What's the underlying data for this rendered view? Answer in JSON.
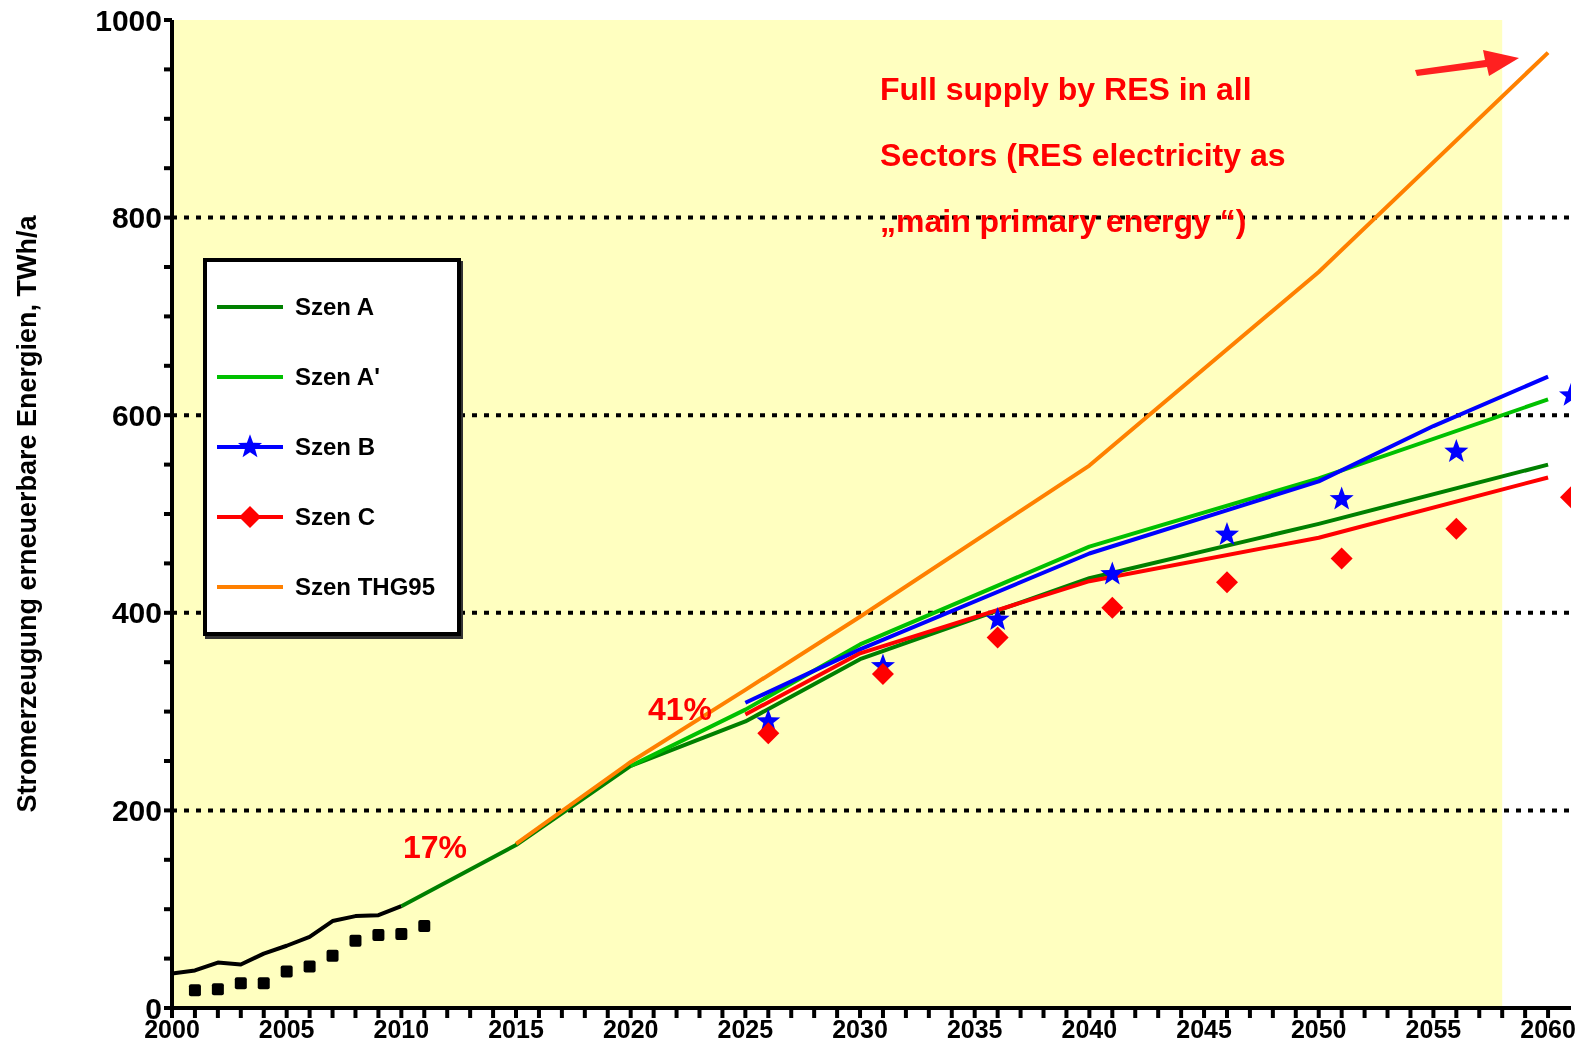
{
  "chart_data": {
    "type": "line",
    "ylabel": "Stromerzeugung erneuerbare Energien, TWh/a",
    "xlim": [
      2000,
      2061
    ],
    "xticks": [
      2000,
      {
        "value": 2001,
        "label": null
      },
      {
        "value": 2002,
        "label": null
      },
      {
        "value": 2003,
        "label": null
      },
      {
        "value": 2004,
        "label": null
      },
      2005,
      {
        "value": 2006,
        "label": null
      },
      {
        "value": 2007,
        "label": null
      },
      {
        "value": 2008,
        "label": null
      },
      {
        "value": 2009,
        "label": null
      },
      2010,
      {
        "value": 2011,
        "label": null
      },
      {
        "value": 2012,
        "label": null
      },
      {
        "value": 2013,
        "label": null
      },
      {
        "value": 2014,
        "label": null
      },
      2015,
      {
        "value": 2016,
        "label": null
      },
      {
        "value": 2017,
        "label": null
      },
      {
        "value": 2018,
        "label": null
      },
      {
        "value": 2019,
        "label": null
      },
      2020,
      {
        "value": 2021,
        "label": null
      },
      {
        "value": 2022,
        "label": null
      },
      {
        "value": 2023,
        "label": null
      },
      {
        "value": 2024,
        "label": null
      },
      2025,
      {
        "value": 2026,
        "label": null
      },
      {
        "value": 2027,
        "label": null
      },
      {
        "value": 2028,
        "label": null
      },
      {
        "value": 2029,
        "label": null
      },
      2030,
      {
        "value": 2031,
        "label": null
      },
      {
        "value": 2032,
        "label": null
      },
      {
        "value": 2033,
        "label": null
      },
      {
        "value": 2034,
        "label": null
      },
      2035,
      {
        "value": 2036,
        "label": null
      },
      {
        "value": 2037,
        "label": null
      },
      {
        "value": 2038,
        "label": null
      },
      {
        "value": 2039,
        "label": null
      },
      2040,
      {
        "value": 2041,
        "label": null
      },
      {
        "value": 2042,
        "label": null
      },
      {
        "value": 2043,
        "label": null
      },
      {
        "value": 2044,
        "label": null
      },
      2045,
      {
        "value": 2046,
        "label": null
      },
      {
        "value": 2047,
        "label": null
      },
      {
        "value": 2048,
        "label": null
      },
      {
        "value": 2049,
        "label": null
      },
      2050,
      {
        "value": 2051,
        "label": null
      },
      {
        "value": 2052,
        "label": null
      },
      {
        "value": 2053,
        "label": null
      },
      {
        "value": 2054,
        "label": null
      },
      2055,
      {
        "value": 2056,
        "label": null
      },
      {
        "value": 2057,
        "label": null
      },
      {
        "value": 2058,
        "label": null
      },
      {
        "value": 2059,
        "label": null
      },
      2060
    ],
    "ylim": [
      0,
      1000
    ],
    "yticks": [
      0,
      {
        "value": 50,
        "label": null
      },
      {
        "value": 100,
        "label": null
      },
      {
        "value": 150,
        "label": null
      },
      200,
      {
        "value": 250,
        "label": null
      },
      {
        "value": 300,
        "label": null
      },
      {
        "value": 350,
        "label": null
      },
      400,
      {
        "value": 450,
        "label": null
      },
      {
        "value": 500,
        "label": null
      },
      {
        "value": 550,
        "label": null
      },
      600,
      {
        "value": 650,
        "label": null
      },
      {
        "value": 700,
        "label": null
      },
      {
        "value": 750,
        "label": null
      },
      800,
      {
        "value": 850,
        "label": null
      },
      {
        "value": 900,
        "label": null
      },
      {
        "value": 950,
        "label": null
      },
      1000
    ],
    "grid": "y",
    "legend": "left",
    "bands": [
      {
        "axis": "x",
        "from": 2000,
        "to": 2058,
        "color": "#ffffc0"
      }
    ],
    "annotations": [
      "17%",
      "41%",
      "Full supply by RES in all Sectors (RES electricity as „main primary energy “)"
    ],
    "series": [
      {
        "color": "#000000",
        "x": [
          2000,
          2001,
          2002,
          2003,
          2004,
          2005,
          2006,
          2007,
          2008,
          2009,
          2010
        ],
        "values": [
          35,
          38,
          46,
          44,
          55,
          63,
          72,
          88,
          93,
          94,
          103
        ]
      },
      {
        "type": "scatter",
        "marker": "square",
        "color": "#000000",
        "x": [
          2001,
          2002,
          2003,
          2004,
          2005,
          2006,
          2007,
          2008,
          2009,
          2010,
          2011
        ],
        "values": [
          18,
          19,
          25,
          25,
          37,
          42,
          53,
          68,
          74,
          75,
          83
        ]
      },
      {
        "name": "Szen A",
        "color": "#008000",
        "x": [
          2010,
          2015,
          2020,
          2025,
          2030,
          2040,
          2050,
          2060
        ],
        "values": [
          103,
          165,
          245,
          290,
          353,
          435,
          490,
          550
        ]
      },
      {
        "name": "Szen A'",
        "color": "#00c000",
        "x": [
          2020,
          2025,
          2030,
          2040,
          2050,
          2060
        ],
        "values": [
          245,
          302,
          368,
          467,
          536,
          616
        ]
      },
      {
        "name": "Szen B",
        "color": "#0000ff",
        "x": [
          2025,
          2030,
          2040,
          2050,
          2055,
          2060
        ],
        "values": [
          309,
          363,
          460,
          533,
          589,
          639
        ]
      },
      {
        "type": "scatter",
        "marker": "star",
        "color": "#0000ff",
        "x": [
          2026,
          2031,
          2036,
          2041,
          2046,
          2051,
          2056,
          2061
        ],
        "values": [
          290,
          346,
          393,
          439,
          479,
          515,
          563,
          620
        ]
      },
      {
        "name": "Szen C",
        "color": "#ff0000",
        "x": [
          2025,
          2030,
          2040,
          2050,
          2060
        ],
        "values": [
          297,
          359,
          432,
          476,
          537
        ]
      },
      {
        "type": "scatter",
        "marker": "diamond",
        "color": "#ff0000",
        "x": [
          2026,
          2031,
          2036,
          2041,
          2046,
          2051,
          2056,
          2061
        ],
        "values": [
          278,
          338,
          375,
          405,
          431,
          455,
          485,
          517
        ]
      },
      {
        "name": "Szen THG95",
        "color": "#ff8000",
        "x": [
          2015,
          2020,
          2025,
          2030,
          2040,
          2050,
          2060
        ],
        "values": [
          166,
          249,
          322,
          396,
          549,
          745,
          967
        ]
      }
    ]
  }
}
